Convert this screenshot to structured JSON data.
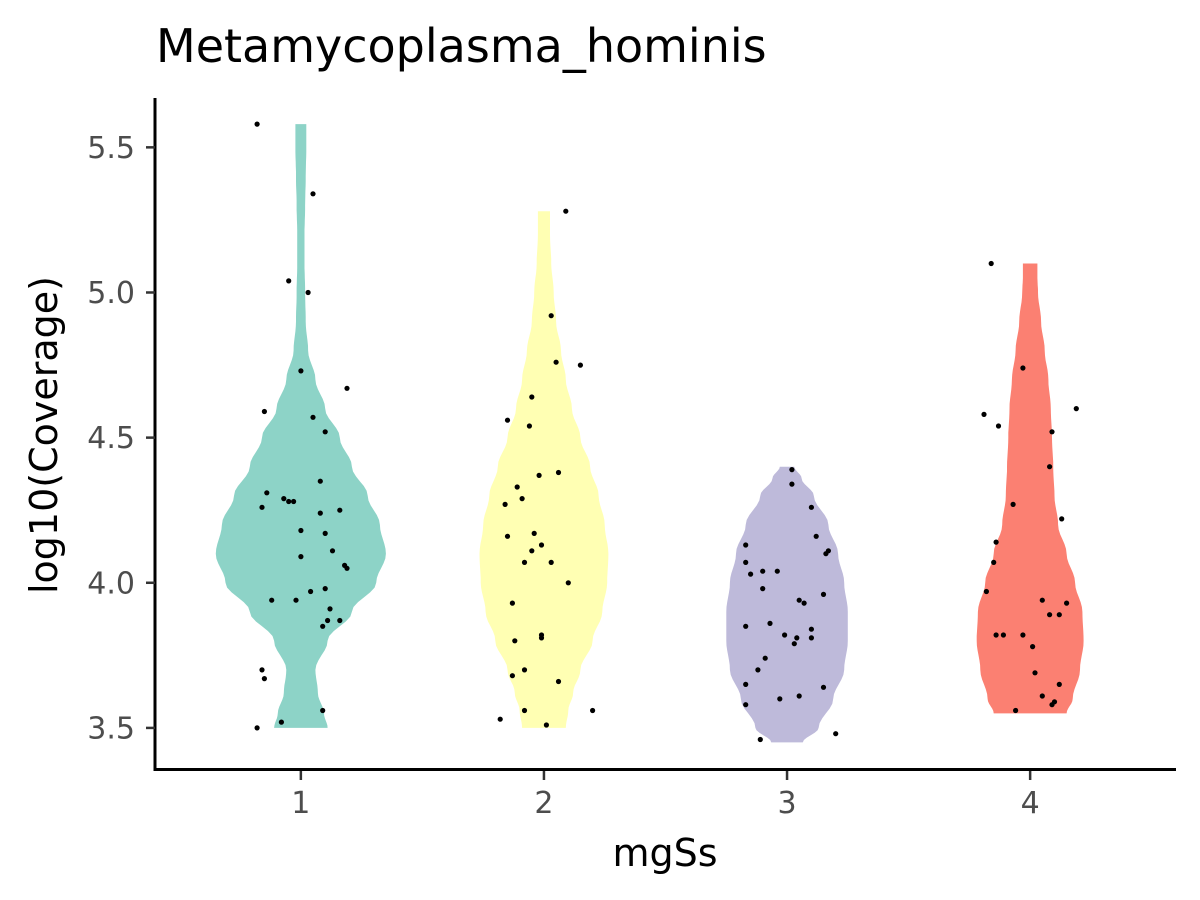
{
  "chart_data": {
    "type": "violin",
    "title": "Metamycoplasma_hominis",
    "xlabel": "mgSs",
    "ylabel": "log10(Coverage)",
    "ylim": [
      3.355,
      5.67
    ],
    "yticks": [
      "3.5",
      "4.0",
      "4.5",
      "5.0",
      "5.5"
    ],
    "categories": [
      "1",
      "2",
      "3",
      "4"
    ],
    "legend": "none",
    "grid": false,
    "groups": [
      {
        "name": "1",
        "color": "#8DD3C7",
        "density": [
          [
            3.5,
            0.22
          ],
          [
            3.55,
            0.19
          ],
          [
            3.62,
            0.14
          ],
          [
            3.7,
            0.12
          ],
          [
            3.8,
            0.22
          ],
          [
            3.9,
            0.42
          ],
          [
            4.0,
            0.62
          ],
          [
            4.1,
            0.7
          ],
          [
            4.2,
            0.65
          ],
          [
            4.3,
            0.55
          ],
          [
            4.4,
            0.42
          ],
          [
            4.5,
            0.32
          ],
          [
            4.6,
            0.2
          ],
          [
            4.7,
            0.12
          ],
          [
            4.8,
            0.06
          ],
          [
            4.9,
            0.04
          ],
          [
            5.0,
            0.035
          ],
          [
            5.1,
            0.03
          ],
          [
            5.2,
            0.03
          ],
          [
            5.3,
            0.035
          ],
          [
            5.4,
            0.04
          ],
          [
            5.5,
            0.045
          ],
          [
            5.58,
            0.045
          ]
        ],
        "points": [
          [
            -0.18,
            5.58
          ],
          [
            0.05,
            5.34
          ],
          [
            -0.05,
            5.04
          ],
          [
            0.03,
            5.0
          ],
          [
            0.0,
            4.73
          ],
          [
            0.19,
            4.67
          ],
          [
            -0.15,
            4.59
          ],
          [
            0.05,
            4.57
          ],
          [
            0.1,
            4.52
          ],
          [
            -0.14,
            4.31
          ],
          [
            0.08,
            4.35
          ],
          [
            -0.07,
            4.29
          ],
          [
            -0.03,
            4.28
          ],
          [
            -0.05,
            4.28
          ],
          [
            -0.16,
            4.26
          ],
          [
            0.16,
            4.25
          ],
          [
            0.08,
            4.24
          ],
          [
            0.0,
            4.18
          ],
          [
            0.1,
            4.17
          ],
          [
            0.13,
            4.11
          ],
          [
            0.18,
            4.06
          ],
          [
            0.19,
            4.05
          ],
          [
            0.0,
            4.09
          ],
          [
            0.1,
            3.98
          ],
          [
            0.04,
            3.97
          ],
          [
            -0.12,
            3.94
          ],
          [
            -0.02,
            3.94
          ],
          [
            0.12,
            3.91
          ],
          [
            0.11,
            3.87
          ],
          [
            0.16,
            3.87
          ],
          [
            0.09,
            3.85
          ],
          [
            -0.16,
            3.7
          ],
          [
            -0.15,
            3.67
          ],
          [
            0.09,
            3.56
          ],
          [
            -0.08,
            3.52
          ],
          [
            -0.18,
            3.5
          ]
        ]
      },
      {
        "name": "2",
        "color": "#FFFFB3",
        "density": [
          [
            3.5,
            0.18
          ],
          [
            3.56,
            0.2
          ],
          [
            3.62,
            0.24
          ],
          [
            3.7,
            0.3
          ],
          [
            3.8,
            0.4
          ],
          [
            3.9,
            0.48
          ],
          [
            4.0,
            0.52
          ],
          [
            4.1,
            0.53
          ],
          [
            4.2,
            0.5
          ],
          [
            4.3,
            0.45
          ],
          [
            4.4,
            0.38
          ],
          [
            4.5,
            0.3
          ],
          [
            4.6,
            0.23
          ],
          [
            4.7,
            0.18
          ],
          [
            4.8,
            0.14
          ],
          [
            4.9,
            0.1
          ],
          [
            5.0,
            0.08
          ],
          [
            5.1,
            0.06
          ],
          [
            5.2,
            0.05
          ],
          [
            5.28,
            0.05
          ]
        ],
        "points": [
          [
            0.09,
            5.28
          ],
          [
            0.03,
            4.92
          ],
          [
            0.15,
            4.75
          ],
          [
            0.05,
            4.76
          ],
          [
            -0.05,
            4.64
          ],
          [
            -0.15,
            4.56
          ],
          [
            -0.06,
            4.54
          ],
          [
            0.06,
            4.38
          ],
          [
            -0.02,
            4.37
          ],
          [
            -0.11,
            4.33
          ],
          [
            -0.09,
            4.29
          ],
          [
            -0.16,
            4.27
          ],
          [
            -0.15,
            4.16
          ],
          [
            -0.04,
            4.17
          ],
          [
            -0.05,
            4.11
          ],
          [
            -0.01,
            4.13
          ],
          [
            -0.08,
            4.07
          ],
          [
            0.03,
            4.07
          ],
          [
            0.1,
            4.0
          ],
          [
            -0.13,
            3.93
          ],
          [
            -0.01,
            3.82
          ],
          [
            -0.01,
            3.81
          ],
          [
            -0.12,
            3.8
          ],
          [
            -0.08,
            3.7
          ],
          [
            -0.13,
            3.68
          ],
          [
            0.06,
            3.66
          ],
          [
            -0.08,
            3.56
          ],
          [
            0.2,
            3.56
          ],
          [
            -0.18,
            3.53
          ],
          [
            0.01,
            3.51
          ]
        ]
      },
      {
        "name": "3",
        "color": "#BEBADA",
        "density": [
          [
            3.45,
            0.13
          ],
          [
            3.5,
            0.26
          ],
          [
            3.6,
            0.38
          ],
          [
            3.7,
            0.47
          ],
          [
            3.8,
            0.5
          ],
          [
            3.9,
            0.5
          ],
          [
            4.0,
            0.47
          ],
          [
            4.1,
            0.42
          ],
          [
            4.2,
            0.34
          ],
          [
            4.3,
            0.22
          ],
          [
            4.36,
            0.12
          ],
          [
            4.4,
            0.06
          ]
        ],
        "points": [
          [
            0.02,
            4.39
          ],
          [
            0.02,
            4.34
          ],
          [
            0.1,
            4.26
          ],
          [
            -0.17,
            4.13
          ],
          [
            0.17,
            4.11
          ],
          [
            0.16,
            4.1
          ],
          [
            -0.17,
            4.07
          ],
          [
            0.12,
            4.16
          ],
          [
            -0.1,
            4.04
          ],
          [
            -0.04,
            4.04
          ],
          [
            -0.15,
            4.03
          ],
          [
            0.15,
            3.96
          ],
          [
            -0.1,
            3.98
          ],
          [
            0.05,
            3.94
          ],
          [
            0.07,
            3.93
          ],
          [
            -0.17,
            3.85
          ],
          [
            -0.07,
            3.86
          ],
          [
            0.1,
            3.84
          ],
          [
            -0.01,
            3.82
          ],
          [
            0.04,
            3.81
          ],
          [
            0.1,
            3.81
          ],
          [
            0.03,
            3.79
          ],
          [
            -0.09,
            3.74
          ],
          [
            -0.12,
            3.7
          ],
          [
            0.15,
            3.64
          ],
          [
            -0.17,
            3.65
          ],
          [
            0.05,
            3.61
          ],
          [
            -0.03,
            3.6
          ],
          [
            -0.17,
            3.58
          ],
          [
            0.2,
            3.48
          ],
          [
            -0.11,
            3.46
          ]
        ]
      },
      {
        "name": "4",
        "color": "#FB8072",
        "density": [
          [
            3.55,
            0.3
          ],
          [
            3.6,
            0.35
          ],
          [
            3.7,
            0.41
          ],
          [
            3.8,
            0.44
          ],
          [
            3.9,
            0.43
          ],
          [
            4.0,
            0.37
          ],
          [
            4.1,
            0.3
          ],
          [
            4.2,
            0.23
          ],
          [
            4.3,
            0.2
          ],
          [
            4.4,
            0.19
          ],
          [
            4.5,
            0.18
          ],
          [
            4.6,
            0.17
          ],
          [
            4.7,
            0.15
          ],
          [
            4.8,
            0.12
          ],
          [
            4.9,
            0.09
          ],
          [
            5.0,
            0.065
          ],
          [
            5.05,
            0.06
          ],
          [
            5.1,
            0.06
          ]
        ],
        "points": [
          [
            -0.16,
            5.1
          ],
          [
            -0.03,
            4.74
          ],
          [
            0.19,
            4.6
          ],
          [
            -0.19,
            4.58
          ],
          [
            -0.13,
            4.54
          ],
          [
            0.09,
            4.52
          ],
          [
            0.08,
            4.4
          ],
          [
            -0.07,
            4.27
          ],
          [
            0.13,
            4.22
          ],
          [
            -0.14,
            4.14
          ],
          [
            -0.15,
            4.07
          ],
          [
            -0.18,
            3.97
          ],
          [
            0.05,
            3.94
          ],
          [
            0.15,
            3.93
          ],
          [
            0.08,
            3.89
          ],
          [
            0.12,
            3.89
          ],
          [
            -0.14,
            3.82
          ],
          [
            -0.11,
            3.82
          ],
          [
            -0.03,
            3.82
          ],
          [
            0.01,
            3.78
          ],
          [
            0.02,
            3.69
          ],
          [
            0.12,
            3.65
          ],
          [
            0.05,
            3.61
          ],
          [
            0.1,
            3.59
          ],
          [
            0.09,
            3.58
          ],
          [
            -0.06,
            3.56
          ]
        ]
      }
    ]
  }
}
